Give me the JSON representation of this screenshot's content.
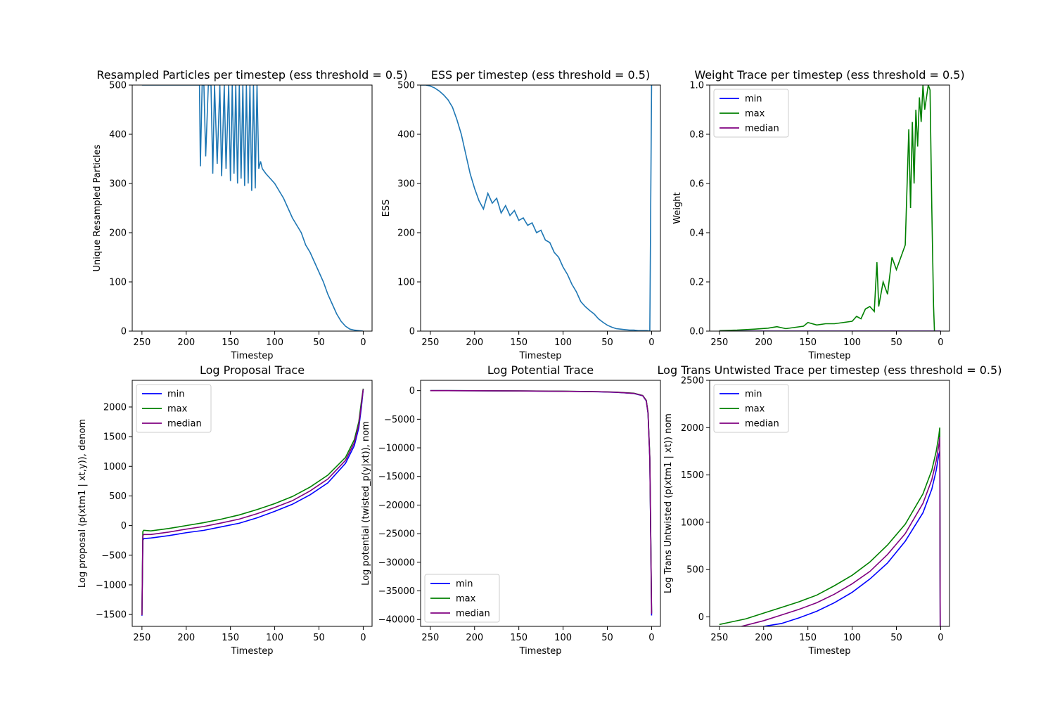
{
  "chart_data": [
    {
      "type": "line",
      "title": "Resampled Particles per timestep (ess threshold = 0.5)",
      "xlabel": "Timestep",
      "ylabel": "Unique Resampled Particles",
      "xlim": [
        261,
        -10
      ],
      "ylim": [
        0,
        500
      ],
      "xticks": [
        250,
        200,
        150,
        100,
        50,
        0
      ],
      "yticks": [
        0,
        100,
        200,
        300,
        400,
        500
      ],
      "legend": null,
      "series": [
        {
          "color": "#1f77b4",
          "generator": "resampled",
          "x": [
            250,
            230,
            210,
            190,
            185,
            184,
            182,
            180,
            178,
            175,
            172,
            170,
            168,
            165,
            162,
            160,
            157,
            155,
            152,
            150,
            148,
            146,
            144,
            142,
            140,
            138,
            136,
            134,
            132,
            130,
            128,
            126,
            124,
            122,
            120,
            118,
            116,
            114,
            110,
            105,
            100,
            95,
            90,
            85,
            80,
            75,
            70,
            65,
            60,
            55,
            50,
            45,
            40,
            35,
            30,
            25,
            20,
            15,
            10,
            5,
            0
          ],
          "values": [
            500,
            500,
            500,
            500,
            500,
            335,
            500,
            500,
            355,
            500,
            500,
            320,
            500,
            340,
            500,
            315,
            500,
            330,
            500,
            305,
            500,
            320,
            500,
            300,
            500,
            310,
            500,
            295,
            500,
            300,
            500,
            285,
            500,
            290,
            500,
            330,
            345,
            330,
            320,
            310,
            300,
            285,
            270,
            250,
            230,
            215,
            200,
            175,
            160,
            140,
            120,
            100,
            75,
            55,
            35,
            20,
            10,
            4,
            2,
            1,
            0
          ]
        }
      ]
    },
    {
      "type": "line",
      "title": "ESS per timestep (ess threshold = 0.5)",
      "xlabel": "Timestep",
      "ylabel": "ESS",
      "xlim": [
        261,
        -10
      ],
      "ylim": [
        0,
        500
      ],
      "xticks": [
        250,
        200,
        150,
        100,
        50,
        0
      ],
      "yticks": [
        0,
        100,
        200,
        300,
        400,
        500
      ],
      "legend": null,
      "series": [
        {
          "color": "#1f77b4",
          "generator": "ess",
          "x": [
            261,
            255,
            250,
            245,
            240,
            235,
            230,
            225,
            220,
            215,
            210,
            205,
            200,
            195,
            190,
            185,
            180,
            175,
            170,
            165,
            160,
            155,
            150,
            145,
            140,
            135,
            130,
            125,
            120,
            115,
            110,
            105,
            100,
            95,
            90,
            85,
            80,
            75,
            70,
            65,
            60,
            55,
            50,
            45,
            40,
            35,
            30,
            25,
            20,
            15,
            10,
            5,
            2,
            1,
            0
          ],
          "values": [
            500,
            500,
            498,
            494,
            488,
            480,
            470,
            455,
            430,
            400,
            360,
            320,
            290,
            265,
            248,
            280,
            260,
            270,
            240,
            255,
            235,
            245,
            225,
            230,
            215,
            220,
            200,
            205,
            185,
            180,
            160,
            150,
            130,
            115,
            95,
            80,
            60,
            50,
            42,
            35,
            25,
            18,
            12,
            8,
            5,
            4,
            3,
            2,
            2,
            1,
            1,
            1,
            0,
            250,
            500
          ]
        }
      ]
    },
    {
      "type": "line",
      "title": "Weight Trace per timestep (ess threshold = 0.5)",
      "xlabel": "Timestep",
      "ylabel": "Weight",
      "xlim": [
        261,
        -10
      ],
      "ylim": [
        0,
        1
      ],
      "xticks": [
        250,
        200,
        150,
        100,
        50,
        0
      ],
      "yticks": [
        0.0,
        0.2,
        0.4,
        0.6,
        0.8,
        1.0
      ],
      "legend": "upper left",
      "series": [
        {
          "name": "min",
          "color": "#0000ff",
          "x": [
            250,
            0
          ],
          "values": [
            0.0,
            0.0
          ]
        },
        {
          "name": "max",
          "color": "#008000",
          "generator": "weight",
          "x": [
            250,
            230,
            210,
            195,
            185,
            175,
            165,
            155,
            150,
            140,
            130,
            120,
            110,
            100,
            95,
            90,
            85,
            80,
            75,
            72,
            70,
            65,
            60,
            55,
            50,
            45,
            40,
            36,
            34,
            32,
            30,
            28,
            26,
            24,
            22,
            20,
            18,
            16,
            14,
            12,
            10,
            8,
            7
          ],
          "values": [
            0.002,
            0.004,
            0.008,
            0.012,
            0.018,
            0.01,
            0.015,
            0.02,
            0.035,
            0.025,
            0.03,
            0.03,
            0.035,
            0.04,
            0.06,
            0.05,
            0.09,
            0.1,
            0.08,
            0.28,
            0.1,
            0.2,
            0.15,
            0.3,
            0.25,
            0.3,
            0.35,
            0.82,
            0.5,
            0.85,
            0.6,
            0.9,
            0.75,
            0.95,
            0.85,
            1.0,
            0.9,
            0.95,
            1.0,
            0.98,
            0.5,
            0.1,
            0.0
          ]
        },
        {
          "name": "median",
          "color": "#800080",
          "x": [
            250,
            0
          ],
          "values": [
            0.0,
            0.0
          ]
        }
      ]
    },
    {
      "type": "line",
      "title": "Log Proposal Trace",
      "xlabel": "Timestep",
      "ylabel": "Log proposal (p(xtm1 | xt,y)), denom",
      "xlim": [
        261,
        -10
      ],
      "ylim": [
        -1700,
        2450
      ],
      "xticks": [
        250,
        200,
        150,
        100,
        50,
        0
      ],
      "yticks": [
        -1500,
        -1000,
        -500,
        0,
        500,
        1000,
        1500,
        2000
      ],
      "legend": "upper left",
      "series": [
        {
          "name": "min",
          "color": "#0000ff",
          "x": [
            250,
            249,
            248,
            240,
            220,
            200,
            180,
            160,
            140,
            120,
            100,
            80,
            60,
            40,
            20,
            10,
            5,
            2,
            0
          ],
          "values": [
            -1520,
            -250,
            -220,
            -210,
            -170,
            -120,
            -80,
            -20,
            40,
            130,
            240,
            360,
            520,
            720,
            1050,
            1350,
            1650,
            2000,
            2300
          ]
        },
        {
          "name": "max",
          "color": "#008000",
          "x": [
            250,
            249,
            248,
            240,
            220,
            200,
            180,
            160,
            140,
            120,
            100,
            80,
            60,
            40,
            20,
            10,
            5,
            2,
            0
          ],
          "values": [
            -1500,
            -100,
            -80,
            -90,
            -50,
            0,
            50,
            110,
            180,
            270,
            370,
            490,
            650,
            850,
            1150,
            1450,
            1750,
            2100,
            2310
          ]
        },
        {
          "name": "median",
          "color": "#800080",
          "x": [
            250,
            249,
            248,
            240,
            220,
            200,
            180,
            160,
            140,
            120,
            100,
            80,
            60,
            40,
            20,
            10,
            5,
            2,
            0
          ],
          "values": [
            -1510,
            -170,
            -150,
            -150,
            -110,
            -60,
            -15,
            45,
            110,
            200,
            305,
            420,
            585,
            785,
            1100,
            1400,
            1700,
            2050,
            2300
          ]
        }
      ]
    },
    {
      "type": "line",
      "title": "Log Potential Trace",
      "xlabel": "Timestep",
      "ylabel": "Log potential (twisted_p(y|xt)), nom",
      "xlim": [
        261,
        -10
      ],
      "ylim": [
        -41200,
        1800
      ],
      "xticks": [
        250,
        200,
        150,
        100,
        50,
        0
      ],
      "yticks": [
        -40000,
        -35000,
        -30000,
        -25000,
        -20000,
        -15000,
        -10000,
        -5000,
        0
      ],
      "legend": "lower left",
      "series": [
        {
          "name": "min",
          "color": "#0000ff",
          "x": [
            250,
            200,
            150,
            100,
            60,
            40,
            20,
            10,
            6,
            4,
            2,
            1,
            0
          ],
          "values": [
            0,
            -20,
            -60,
            -120,
            -200,
            -300,
            -500,
            -900,
            -1800,
            -4000,
            -12000,
            -25000,
            -39300
          ]
        },
        {
          "name": "max",
          "color": "#008000",
          "x": [
            250,
            200,
            150,
            100,
            60,
            40,
            20,
            10,
            6,
            4,
            2,
            1,
            0
          ],
          "values": [
            0,
            -15,
            -50,
            -100,
            -180,
            -270,
            -450,
            -850,
            -1700,
            -3800,
            -11500,
            -24500,
            -38800
          ]
        },
        {
          "name": "median",
          "color": "#800080",
          "x": [
            250,
            200,
            150,
            100,
            60,
            40,
            20,
            10,
            6,
            4,
            2,
            1,
            0
          ],
          "values": [
            0,
            -18,
            -55,
            -110,
            -190,
            -285,
            -475,
            -875,
            -1750,
            -3900,
            -11800,
            -24800,
            -39000
          ]
        }
      ]
    },
    {
      "type": "line",
      "title": "Log Trans Untwisted Trace per timestep (ess threshold = 0.5)",
      "xlabel": "Timestep",
      "ylabel": "Log Trans Untwisted (p(xtm1 | xt)) nom",
      "xlim": [
        261,
        -10
      ],
      "ylim": [
        -100,
        2500
      ],
      "xticks": [
        250,
        200,
        150,
        100,
        50,
        0
      ],
      "yticks": [
        0,
        500,
        1000,
        1500,
        2000,
        2500
      ],
      "legend": "upper left",
      "series": [
        {
          "name": "min",
          "color": "#0000ff",
          "x": [
            200,
            180,
            160,
            140,
            120,
            100,
            80,
            60,
            40,
            20,
            10,
            5,
            2,
            1,
            0.5,
            0
          ],
          "values": [
            -100,
            -70,
            -10,
            60,
            150,
            260,
            400,
            570,
            800,
            1100,
            1350,
            1550,
            1720,
            1750,
            -100,
            -100
          ]
        },
        {
          "name": "max",
          "color": "#008000",
          "x": [
            250,
            240,
            220,
            200,
            180,
            160,
            140,
            120,
            100,
            80,
            60,
            40,
            20,
            10,
            5,
            2,
            1,
            0.5,
            0
          ],
          "values": [
            -80,
            -60,
            -20,
            40,
            100,
            160,
            230,
            330,
            440,
            580,
            760,
            980,
            1300,
            1550,
            1750,
            1920,
            2000,
            -100,
            -100
          ]
        },
        {
          "name": "median",
          "color": "#800080",
          "x": [
            225,
            200,
            180,
            160,
            140,
            120,
            100,
            80,
            60,
            40,
            20,
            10,
            5,
            2,
            1,
            0.5,
            0
          ],
          "values": [
            -100,
            -40,
            20,
            80,
            150,
            240,
            350,
            480,
            660,
            880,
            1200,
            1450,
            1650,
            1820,
            1900,
            -100,
            -100
          ]
        }
      ]
    }
  ]
}
